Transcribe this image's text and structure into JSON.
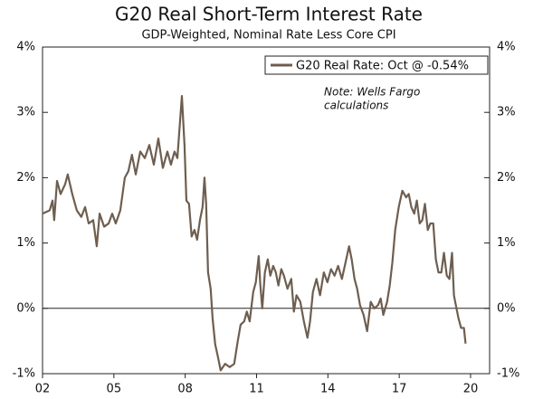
{
  "chart_data": {
    "type": "line",
    "title": "G20 Real Short-Term Interest Rate",
    "subtitle": "GDP-Weighted, Nominal Rate Less Core CPI",
    "note": [
      "Note: Wells Fargo",
      "calculations"
    ],
    "legend_position": "upper right",
    "x": [
      2002.0,
      2002.3,
      2002.42,
      2002.49,
      2002.61,
      2002.76,
      2002.95,
      2003.06,
      2003.25,
      2003.44,
      2003.63,
      2003.79,
      2003.94,
      2004.13,
      2004.28,
      2004.4,
      2004.59,
      2004.78,
      2004.93,
      2005.08,
      2005.27,
      2005.46,
      2005.61,
      2005.76,
      2005.92,
      2006.11,
      2006.3,
      2006.49,
      2006.68,
      2006.87,
      2007.06,
      2007.25,
      2007.4,
      2007.55,
      2007.67,
      2007.86,
      2007.97,
      2008.05,
      2008.16,
      2008.27,
      2008.39,
      2008.5,
      2008.62,
      2008.73,
      2008.81,
      2008.88,
      2008.96,
      2009.07,
      2009.15,
      2009.26,
      2009.38,
      2009.49,
      2009.68,
      2009.87,
      2010.06,
      2010.21,
      2010.33,
      2010.48,
      2010.59,
      2010.71,
      2010.86,
      2010.97,
      2011.09,
      2011.16,
      2011.24,
      2011.35,
      2011.47,
      2011.58,
      2011.7,
      2011.81,
      2011.92,
      2012.04,
      2012.15,
      2012.3,
      2012.46,
      2012.57,
      2012.68,
      2012.84,
      2012.99,
      2013.14,
      2013.25,
      2013.37,
      2013.52,
      2013.67,
      2013.83,
      2013.98,
      2014.13,
      2014.28,
      2014.43,
      2014.59,
      2014.74,
      2014.89,
      2015.0,
      2015.12,
      2015.23,
      2015.35,
      2015.5,
      2015.65,
      2015.8,
      2015.95,
      2016.11,
      2016.22,
      2016.33,
      2016.49,
      2016.6,
      2016.71,
      2016.83,
      2016.98,
      2017.13,
      2017.29,
      2017.4,
      2017.51,
      2017.63,
      2017.74,
      2017.86,
      2017.97,
      2018.08,
      2018.2,
      2018.31,
      2018.43,
      2018.54,
      2018.65,
      2018.77,
      2018.88,
      2019.0,
      2019.11,
      2019.22,
      2019.3,
      2019.38,
      2019.49,
      2019.6,
      2019.72,
      2019.79
    ],
    "series": [
      {
        "name": "G20 Real Rate: Oct @ -0.54%",
        "color": "#6e5e50",
        "values": [
          1.45,
          1.5,
          1.65,
          1.35,
          1.95,
          1.75,
          1.9,
          2.05,
          1.75,
          1.5,
          1.4,
          1.55,
          1.3,
          1.35,
          0.95,
          1.45,
          1.25,
          1.3,
          1.45,
          1.3,
          1.5,
          2.0,
          2.1,
          2.35,
          2.05,
          2.4,
          2.3,
          2.5,
          2.2,
          2.6,
          2.15,
          2.4,
          2.2,
          2.4,
          2.3,
          3.25,
          2.5,
          1.65,
          1.6,
          1.1,
          1.2,
          1.05,
          1.35,
          1.55,
          2.0,
          1.6,
          0.55,
          0.3,
          -0.15,
          -0.55,
          -0.75,
          -0.95,
          -0.85,
          -0.9,
          -0.85,
          -0.5,
          -0.25,
          -0.2,
          -0.05,
          -0.2,
          0.25,
          0.4,
          0.8,
          0.35,
          0.0,
          0.55,
          0.75,
          0.5,
          0.65,
          0.55,
          0.35,
          0.6,
          0.5,
          0.3,
          0.45,
          -0.05,
          0.2,
          0.1,
          -0.2,
          -0.45,
          -0.2,
          0.25,
          0.45,
          0.2,
          0.55,
          0.4,
          0.6,
          0.5,
          0.65,
          0.45,
          0.7,
          0.95,
          0.75,
          0.45,
          0.3,
          0.05,
          -0.1,
          -0.35,
          0.1,
          0.0,
          0.05,
          0.15,
          -0.1,
          0.1,
          0.35,
          0.7,
          1.2,
          1.55,
          1.8,
          1.7,
          1.75,
          1.55,
          1.45,
          1.65,
          1.3,
          1.35,
          1.6,
          1.2,
          1.3,
          1.3,
          0.75,
          0.55,
          0.55,
          0.85,
          0.5,
          0.45,
          0.85,
          0.2,
          0.05,
          -0.15,
          -0.3,
          -0.3,
          -0.54
        ]
      }
    ],
    "xlim": [
      2002,
      2020.8
    ],
    "xticks": [
      {
        "value": 2002,
        "label": "02"
      },
      {
        "value": 2005,
        "label": "05"
      },
      {
        "value": 2008,
        "label": "08"
      },
      {
        "value": 2011,
        "label": "11"
      },
      {
        "value": 2014,
        "label": "14"
      },
      {
        "value": 2017,
        "label": "17"
      },
      {
        "value": 2020,
        "label": "20"
      }
    ],
    "ylim": [
      -1,
      4
    ],
    "yticks": [
      {
        "value": -1,
        "label": "-1%"
      },
      {
        "value": 0,
        "label": "0%"
      },
      {
        "value": 1,
        "label": "1%"
      },
      {
        "value": 2,
        "label": "2%"
      },
      {
        "value": 3,
        "label": "3%"
      },
      {
        "value": 4,
        "label": "4%"
      }
    ],
    "y2lim": [
      -1,
      4
    ],
    "y2ticks": [
      {
        "value": -1,
        "label": "-1%"
      },
      {
        "value": 0,
        "label": "0%"
      },
      {
        "value": 1,
        "label": "1%"
      },
      {
        "value": 2,
        "label": "2%"
      },
      {
        "value": 3,
        "label": "3%"
      },
      {
        "value": 4,
        "label": "4%"
      }
    ],
    "grid": false
  }
}
